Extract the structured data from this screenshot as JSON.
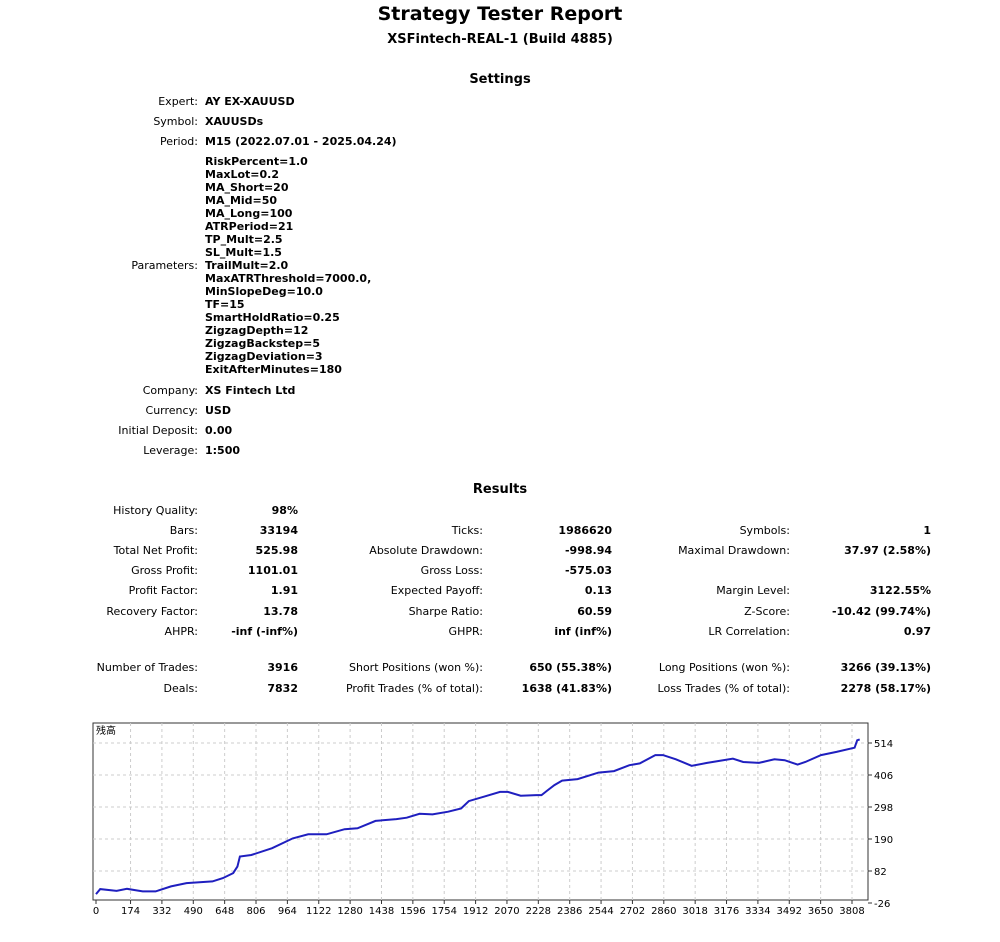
{
  "header": {
    "title": "Strategy Tester Report",
    "subtitle": "XSFintech-REAL-1 (Build 4885)"
  },
  "settings": {
    "heading": "Settings",
    "rows": [
      {
        "label": "Expert:",
        "value": "AY EX-XAUUSD"
      },
      {
        "label": "Symbol:",
        "value": "XAUUSDs"
      },
      {
        "label": "Period:",
        "value": "M15 (2022.07.01 - 2025.04.24)"
      }
    ],
    "parameters_label": "Parameters:",
    "parameters": [
      "RiskPercent=1.0",
      "MaxLot=0.2",
      "MA_Short=20",
      "MA_Mid=50",
      "MA_Long=100",
      "ATRPeriod=21",
      "TP_Mult=2.5",
      "SL_Mult=1.5",
      "TrailMult=2.0",
      "MaxATRThreshold=7000.0,",
      "MinSlopeDeg=10.0",
      "TF=15",
      "SmartHoldRatio=0.25",
      "ZigzagDepth=12",
      "ZigzagBackstep=5",
      "ZigzagDeviation=3",
      "ExitAfterMinutes=180"
    ],
    "rows2": [
      {
        "label": "Company:",
        "value": "XS Fintech Ltd"
      },
      {
        "label": "Currency:",
        "value": "USD"
      },
      {
        "label": "Initial Deposit:",
        "value": "0.00"
      },
      {
        "label": "Leverage:",
        "value": "1:500"
      }
    ]
  },
  "results": {
    "heading": "Results",
    "rows": [
      [
        {
          "label": "History Quality:",
          "value": "98%"
        }
      ],
      [
        {
          "label": "Bars:",
          "value": "33194"
        },
        {
          "label": "Ticks:",
          "value": "1986620"
        },
        {
          "label": "Symbols:",
          "value": "1"
        }
      ],
      [
        {
          "label": "Total Net Profit:",
          "value": "525.98"
        },
        {
          "label": "Absolute Drawdown:",
          "value": "-998.94"
        },
        {
          "label": "Maximal Drawdown:",
          "value": "37.97 (2.58%)"
        }
      ],
      [
        {
          "label": "Gross Profit:",
          "value": "1101.01"
        },
        {
          "label": "Gross Loss:",
          "value": "-575.03"
        }
      ],
      [
        {
          "label": "Profit Factor:",
          "value": "1.91"
        },
        {
          "label": "Expected Payoff:",
          "value": "0.13"
        },
        {
          "label": "Margin Level:",
          "value": "3122.55%"
        }
      ],
      [
        {
          "label": "Recovery Factor:",
          "value": "13.78"
        },
        {
          "label": "Sharpe Ratio:",
          "value": "60.59"
        },
        {
          "label": "Z-Score:",
          "value": "-10.42 (99.74%)"
        }
      ],
      [
        {
          "label": "AHPR:",
          "value": "-inf (-inf%)"
        },
        {
          "label": "GHPR:",
          "value": "inf (inf%)"
        },
        {
          "label": "LR Correlation:",
          "value": "0.97"
        }
      ],
      [
        {
          "label": "Number of Trades:",
          "value": "3916"
        },
        {
          "label": "Short Positions (won %):",
          "value": "650 (55.38%)"
        },
        {
          "label": "Long Positions (won %):",
          "value": "3266 (39.13%)"
        }
      ],
      [
        {
          "label": "Deals:",
          "value": "7832"
        },
        {
          "label": "Profit Trades (% of total):",
          "value": "1638 (41.83%)"
        },
        {
          "label": "Loss Trades (% of total):",
          "value": "2278 (58.17%)"
        }
      ]
    ]
  },
  "chart_data": {
    "type": "line",
    "title": "残高",
    "line_color": "#1f1fbf",
    "grid": true,
    "xlim": [
      0,
      3890
    ],
    "ylim": [
      -26,
      540
    ],
    "x_ticks": [
      0,
      174,
      332,
      490,
      648,
      806,
      964,
      1122,
      1280,
      1438,
      1596,
      1754,
      1912,
      2070,
      2228,
      2386,
      2544,
      2702,
      2860,
      3018,
      3176,
      3334,
      3492,
      3650,
      3808
    ],
    "y_ticks": [
      514,
      406,
      298,
      190,
      82,
      -26
    ],
    "x": [
      0,
      21,
      104,
      156,
      235,
      300,
      378,
      456,
      587,
      639,
      691,
      712,
      725,
      782,
      887,
      991,
      1069,
      1161,
      1252,
      1317,
      1408,
      1513,
      1565,
      1630,
      1695,
      1774,
      1839,
      1878,
      1956,
      2035,
      2074,
      2139,
      2218,
      2244,
      2270,
      2309,
      2348,
      2426,
      2531,
      2609,
      2687,
      2739,
      2817,
      2856,
      2921,
      3000,
      3078,
      3208,
      3260,
      3339,
      3417,
      3469,
      3534,
      3573,
      3652,
      3730,
      3821,
      3834,
      3847
    ],
    "y": [
      4,
      21,
      15,
      22,
      13,
      13,
      30,
      41,
      47,
      58,
      75,
      97,
      131,
      136,
      159,
      192,
      206,
      206,
      223,
      226,
      251,
      257,
      262,
      275,
      273,
      282,
      293,
      318,
      333,
      349,
      349,
      336,
      338,
      338,
      352,
      372,
      387,
      392,
      414,
      419,
      439,
      445,
      473,
      473,
      459,
      437,
      447,
      461,
      450,
      447,
      459,
      456,
      441,
      450,
      473,
      484,
      498,
      523,
      526
    ]
  }
}
